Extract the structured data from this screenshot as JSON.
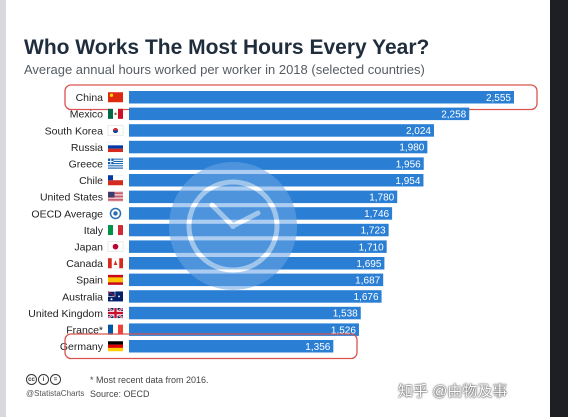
{
  "title": "Who Works The Most Hours Every Year?",
  "subtitle": "Average annual hours worked per worker in 2018 (selected countries)",
  "chart_data": {
    "type": "bar",
    "orientation": "horizontal",
    "title": "Who Works The Most Hours Every Year?",
    "subtitle": "Average annual hours worked per worker in 2018 (selected countries)",
    "categories": [
      "China",
      "Mexico",
      "South Korea",
      "Russia",
      "Greece",
      "Chile",
      "United States",
      "OECD Average",
      "Italy",
      "Japan",
      "Canada",
      "Spain",
      "Australia",
      "United Kingdom",
      "France*",
      "Germany"
    ],
    "values": [
      2555,
      2258,
      2024,
      1980,
      1956,
      1954,
      1780,
      1746,
      1723,
      1710,
      1695,
      1687,
      1676,
      1538,
      1526,
      1356
    ],
    "value_labels": [
      "2,555",
      "2,258",
      "2,024",
      "1,980",
      "1,956",
      "1,954",
      "1,780",
      "1,746",
      "1,723",
      "1,710",
      "1,695",
      "1,687",
      "1,676",
      "1,538",
      "1,526",
      "1,356"
    ],
    "flags": [
      "flag-china",
      "flag-mexico",
      "flag-south-korea",
      "flag-russia",
      "flag-greece",
      "flag-chile",
      "flag-united-states",
      "flag-oecd",
      "flag-italy",
      "flag-japan",
      "flag-canada",
      "flag-spain",
      "flag-australia",
      "flag-united-kingdom",
      "flag-france",
      "flag-germany"
    ],
    "highlighted": [
      "China",
      "Germany"
    ],
    "bar_color": "#2a7fd4",
    "highlight_color": "#d9534f",
    "xlim": [
      0,
      2555
    ],
    "grid": false,
    "legend": "none"
  },
  "footer": {
    "license_icons": [
      "cc",
      "i",
      "="
    ],
    "handle": "@StatistaCharts",
    "note": "* Most recent data from 2016.",
    "source": "Source: OECD"
  },
  "overlay": {
    "icon": "clock-icon"
  },
  "watermark": "知乎 @由物及事"
}
